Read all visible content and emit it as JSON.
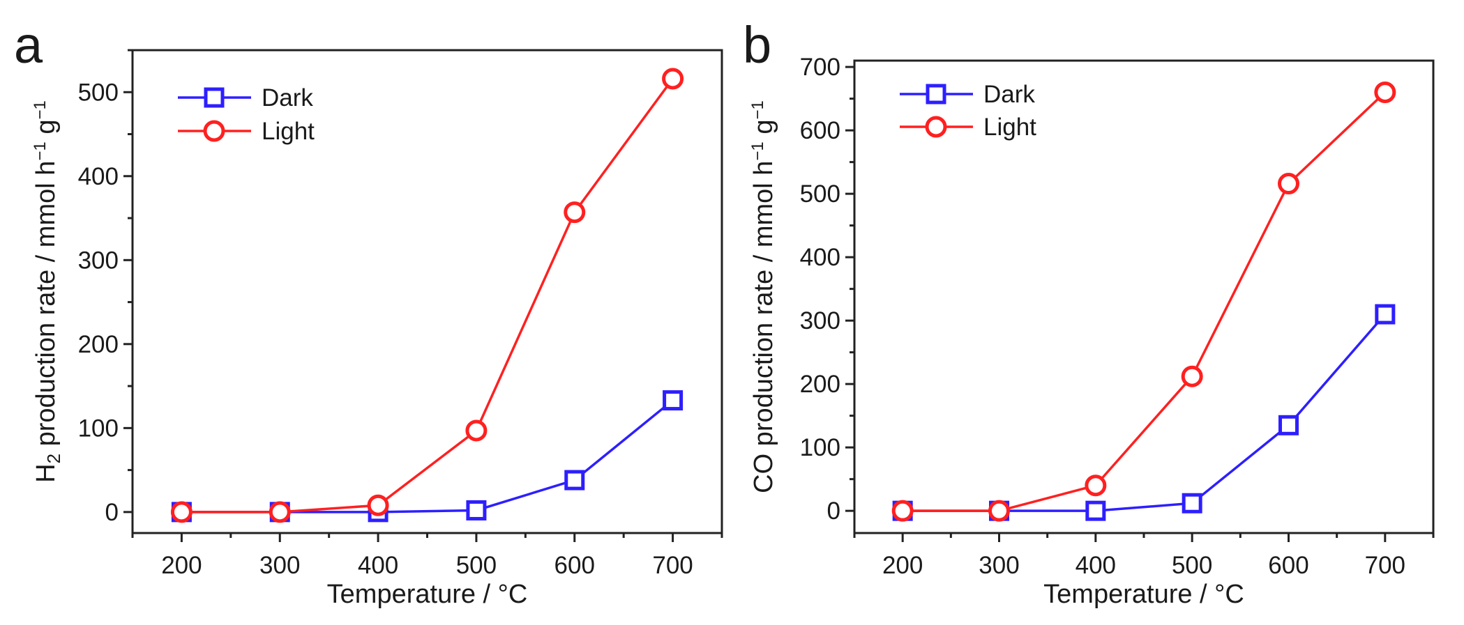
{
  "chart_data": [
    {
      "type": "line",
      "panel_label": "a",
      "title": "",
      "xlabel": "Temperature / °C",
      "ylabel": {
        "main": "H",
        "sub": "2",
        "rest": " production rate / mmol h",
        "sup1": "−1",
        "mid": " g",
        "sup2": "−1"
      },
      "x": [
        200,
        300,
        400,
        500,
        600,
        700
      ],
      "xlim": [
        150,
        750
      ],
      "ylim": [
        -25,
        550
      ],
      "xticks": [
        200,
        300,
        400,
        500,
        600,
        700
      ],
      "yticks": [
        0,
        100,
        200,
        300,
        400,
        500
      ],
      "legend": "top-left",
      "grid": false,
      "series": [
        {
          "name": "Dark",
          "color": "#2d1fff",
          "marker": "square",
          "values": [
            0,
            0,
            0,
            2,
            38,
            133
          ]
        },
        {
          "name": "Light",
          "color": "#ff2020",
          "marker": "circle",
          "values": [
            0,
            0,
            8,
            97,
            357,
            516
          ]
        }
      ]
    },
    {
      "type": "line",
      "panel_label": "b",
      "title": "",
      "xlabel": "Temperature / °C",
      "ylabel": {
        "main": "CO",
        "sub": "",
        "rest": " production rate / mmol h",
        "sup1": "−1",
        "mid": " g",
        "sup2": "−1"
      },
      "x": [
        200,
        300,
        400,
        500,
        600,
        700
      ],
      "xlim": [
        150,
        750
      ],
      "ylim": [
        -35,
        710
      ],
      "xticks": [
        200,
        300,
        400,
        500,
        600,
        700
      ],
      "yticks": [
        0,
        100,
        200,
        300,
        400,
        500,
        600,
        700
      ],
      "legend": "top-left",
      "grid": false,
      "series": [
        {
          "name": "Dark",
          "color": "#2d1fff",
          "marker": "square",
          "values": [
            0,
            0,
            0,
            12,
            135,
            310
          ]
        },
        {
          "name": "Light",
          "color": "#ff2020",
          "marker": "circle",
          "values": [
            0,
            0,
            40,
            212,
            516,
            660
          ]
        }
      ]
    }
  ]
}
